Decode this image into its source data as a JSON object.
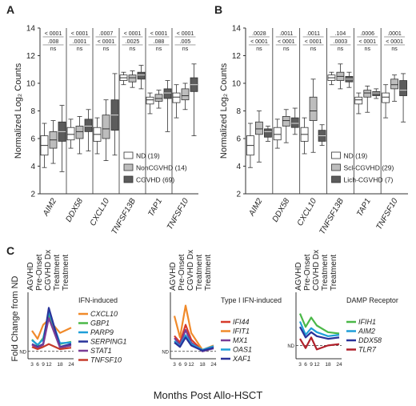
{
  "panels": {
    "A": "A",
    "B": "B",
    "C": "C"
  },
  "chart_data": [
    {
      "type": "box",
      "panel": "A",
      "ylabel": "Normalized Log₂ Counts",
      "ylim": [
        2,
        14
      ],
      "yticks": [
        2,
        4,
        6,
        8,
        10,
        12,
        14
      ],
      "categories": [
        "AIM2",
        "DDX58",
        "CXCL10",
        "TNFSF13B",
        "TAP1",
        "TNFSF10"
      ],
      "legend_position": "bottom-right",
      "series": [
        {
          "name": "ND (19)",
          "color": "#ffffff"
        },
        {
          "name": "NonCGVHD (14)",
          "color": "#bdbdbd"
        },
        {
          "name": "CGVHD (69)",
          "color": "#5c5c5c"
        }
      ],
      "boxes": [
        [
          [
            3.9,
            4.8,
            5.5,
            6.2,
            7.1
          ],
          [
            4.2,
            5.3,
            5.9,
            6.5,
            7.3
          ],
          [
            3.6,
            5.8,
            6.5,
            7.2,
            8.4
          ]
        ],
        [
          [
            5.3,
            5.9,
            6.3,
            6.8,
            7.4
          ],
          [
            4.9,
            6.0,
            6.5,
            6.9,
            7.6
          ],
          [
            5.1,
            6.5,
            6.9,
            7.4,
            8.1
          ]
        ],
        [
          [
            4.9,
            5.8,
            6.3,
            6.8,
            7.5
          ],
          [
            4.4,
            6.0,
            6.7,
            7.7,
            8.8
          ],
          [
            4.8,
            6.6,
            7.7,
            8.8,
            10.7
          ]
        ],
        [
          [
            9.9,
            10.2,
            10.4,
            10.6,
            10.8
          ],
          [
            9.7,
            10.1,
            10.4,
            10.6,
            10.9
          ],
          [
            9.6,
            10.3,
            10.6,
            10.8,
            11.3
          ]
        ],
        [
          [
            7.8,
            8.5,
            8.8,
            9.0,
            9.3
          ],
          [
            8.2,
            8.7,
            8.9,
            9.2,
            9.5
          ],
          [
            6.5,
            8.9,
            9.3,
            9.6,
            10.2
          ]
        ],
        [
          [
            7.5,
            8.6,
            9.0,
            9.3,
            9.9
          ],
          [
            8.1,
            8.8,
            9.1,
            9.6,
            10.0
          ],
          [
            6.2,
            9.4,
            9.9,
            10.4,
            11.4
          ]
        ]
      ],
      "significance": [
        [
          "< 0001",
          ".008",
          "ns"
        ],
        [
          "< 0001",
          ".0001",
          "ns"
        ],
        [
          ".0007",
          "< 0001",
          "ns"
        ],
        [
          "< 0001",
          ".0025",
          "ns"
        ],
        [
          "< 0001",
          ".088",
          "ns"
        ],
        [
          "< 0001",
          ".005",
          "ns"
        ]
      ]
    },
    {
      "type": "box",
      "panel": "B",
      "ylabel": "Normalized Log₂ Counts",
      "ylim": [
        2,
        14
      ],
      "yticks": [
        2,
        4,
        6,
        8,
        10,
        12,
        14
      ],
      "categories": [
        "AIM2",
        "DDX58",
        "CXCL10",
        "TNFSF13B",
        "TAP1",
        "TNFSF10"
      ],
      "legend_position": "bottom-right",
      "series": [
        {
          "name": "ND (19)",
          "color": "#ffffff"
        },
        {
          "name": "Scl-CGVHD (29)",
          "color": "#bdbdbd"
        },
        {
          "name": "Lich-CGVHD (7)",
          "color": "#5c5c5c"
        }
      ],
      "boxes": [
        [
          [
            3.9,
            4.8,
            5.5,
            6.2,
            7.1
          ],
          [
            4.3,
            6.3,
            6.7,
            7.2,
            8.0
          ],
          [
            5.8,
            6.1,
            6.5,
            6.7,
            6.9
          ]
        ],
        [
          [
            5.3,
            5.9,
            6.3,
            6.8,
            7.4
          ],
          [
            5.7,
            6.9,
            7.3,
            7.6,
            8.1
          ],
          [
            6.3,
            6.8,
            7.1,
            7.5,
            8.2
          ]
        ],
        [
          [
            4.9,
            5.8,
            6.3,
            6.8,
            7.5
          ],
          [
            5.0,
            7.3,
            8.0,
            9.0,
            10.3
          ],
          [
            5.5,
            5.8,
            6.2,
            6.6,
            7.0
          ]
        ],
        [
          [
            9.9,
            10.2,
            10.4,
            10.6,
            10.8
          ],
          [
            9.6,
            10.2,
            10.5,
            10.8,
            11.4
          ],
          [
            9.7,
            10.1,
            10.3,
            10.5,
            10.8
          ]
        ],
        [
          [
            7.8,
            8.5,
            8.8,
            9.0,
            9.3
          ],
          [
            7.9,
            9.0,
            9.3,
            9.5,
            9.8
          ],
          [
            8.9,
            9.1,
            9.3,
            9.4,
            9.6
          ]
        ],
        [
          [
            7.5,
            8.6,
            9.0,
            9.3,
            9.9
          ],
          [
            8.7,
            9.6,
            9.9,
            10.3,
            10.6
          ],
          [
            7.2,
            9.1,
            9.5,
            10.2,
            10.7
          ]
        ]
      ],
      "significance": [
        [
          ".0028",
          "< 0001",
          "ns"
        ],
        [
          ".0011",
          "< 0001",
          "ns"
        ],
        [
          ".0011",
          "< 0001",
          "ns"
        ],
        [
          ".104",
          ".0003",
          "ns"
        ],
        [
          ".0006",
          "< 0001",
          "ns"
        ],
        [
          ".0001",
          "< 0001",
          "ns"
        ]
      ]
    },
    {
      "type": "line",
      "panel": "C",
      "title": "IFN-induced",
      "ylabel": "Fold Change from ND",
      "x": [
        3,
        6,
        9,
        12,
        18,
        24
      ],
      "ylim": [
        0,
        9
      ],
      "reference_line": {
        "value": 1,
        "label": "ND"
      },
      "phases": [
        "AGVHD",
        "Pre-Onset",
        "CGVHD Dx",
        "Treatment",
        "Treatment"
      ],
      "series": [
        {
          "name": "CXCL10",
          "color": "#f08a2a",
          "values": [
            3.8,
            2.7,
            4.6,
            5.3,
            3.5,
            4.2
          ]
        },
        {
          "name": "GBP1",
          "color": "#4bb848",
          "values": [
            2.6,
            1.8,
            2.8,
            6.0,
            2.0,
            2.3
          ]
        },
        {
          "name": "PARP9",
          "color": "#1f9fd8",
          "values": [
            2.5,
            1.9,
            2.6,
            6.4,
            2.1,
            2.2
          ]
        },
        {
          "name": "SERPING1",
          "color": "#29339a",
          "values": [
            2.0,
            1.6,
            2.0,
            6.9,
            1.6,
            2.0
          ]
        },
        {
          "name": "STAT1",
          "color": "#7a3c96",
          "values": [
            1.9,
            1.5,
            1.9,
            5.5,
            1.5,
            1.8
          ]
        },
        {
          "name": "TNFSF10",
          "color": "#c53a2a",
          "values": [
            1.6,
            1.3,
            1.6,
            2.0,
            1.3,
            1.5
          ]
        }
      ]
    },
    {
      "type": "line",
      "panel": "C",
      "title": "Type I IFN-induced",
      "x": [
        3,
        6,
        9,
        12,
        18,
        24
      ],
      "ylim": [
        0,
        9
      ],
      "reference_line": {
        "value": 1,
        "label": "ND"
      },
      "phases": [
        "AGVHD",
        "Pre-Onset",
        "CGVHD Dx",
        "Treatment",
        "Treatment"
      ],
      "series": [
        {
          "name": "IFI44",
          "color": "#d63a2a",
          "values": [
            3.1,
            2.2,
            4.6,
            2.6,
            1.1,
            1.6
          ]
        },
        {
          "name": "IFIT1",
          "color": "#f08a2a",
          "values": [
            5.8,
            2.9,
            7.2,
            3.5,
            1.2,
            1.8
          ]
        },
        {
          "name": "MX1",
          "color": "#7a3c96",
          "values": [
            2.8,
            1.9,
            3.9,
            2.2,
            1.0,
            1.4
          ]
        },
        {
          "name": "OAS1",
          "color": "#1f9fd8",
          "values": [
            2.4,
            1.7,
            3.2,
            2.0,
            1.2,
            1.7
          ]
        },
        {
          "name": "XAF1",
          "color": "#29339a",
          "values": [
            2.2,
            1.6,
            2.9,
            1.8,
            1.1,
            1.5
          ]
        }
      ]
    },
    {
      "type": "line",
      "panel": "C",
      "title": "DAMP Receptor",
      "x": [
        3,
        6,
        9,
        12,
        18,
        24
      ],
      "ylim": [
        0,
        5
      ],
      "reference_line": {
        "value": 1,
        "label": "ND"
      },
      "phases": [
        "AGVHD",
        "Pre-Onset",
        "CGVHD Dx",
        "Treatment",
        "Treatment"
      ],
      "series": [
        {
          "name": "IFIH1",
          "color": "#4bb848",
          "values": [
            3.4,
            2.4,
            3.1,
            2.5,
            2.0,
            1.9
          ]
        },
        {
          "name": "AIM2",
          "color": "#1f9fd8",
          "values": [
            2.8,
            1.8,
            2.3,
            2.0,
            1.7,
            1.8
          ]
        },
        {
          "name": "DDX58",
          "color": "#29339a",
          "values": [
            2.4,
            1.6,
            2.0,
            1.7,
            1.5,
            1.6
          ]
        },
        {
          "name": "TLR7",
          "color": "#b0202a",
          "values": [
            1.5,
            0.8,
            1.6,
            0.7,
            1.0,
            1.1
          ]
        }
      ]
    }
  ],
  "xlabel_shared": "Months Post Allo-HSCT"
}
